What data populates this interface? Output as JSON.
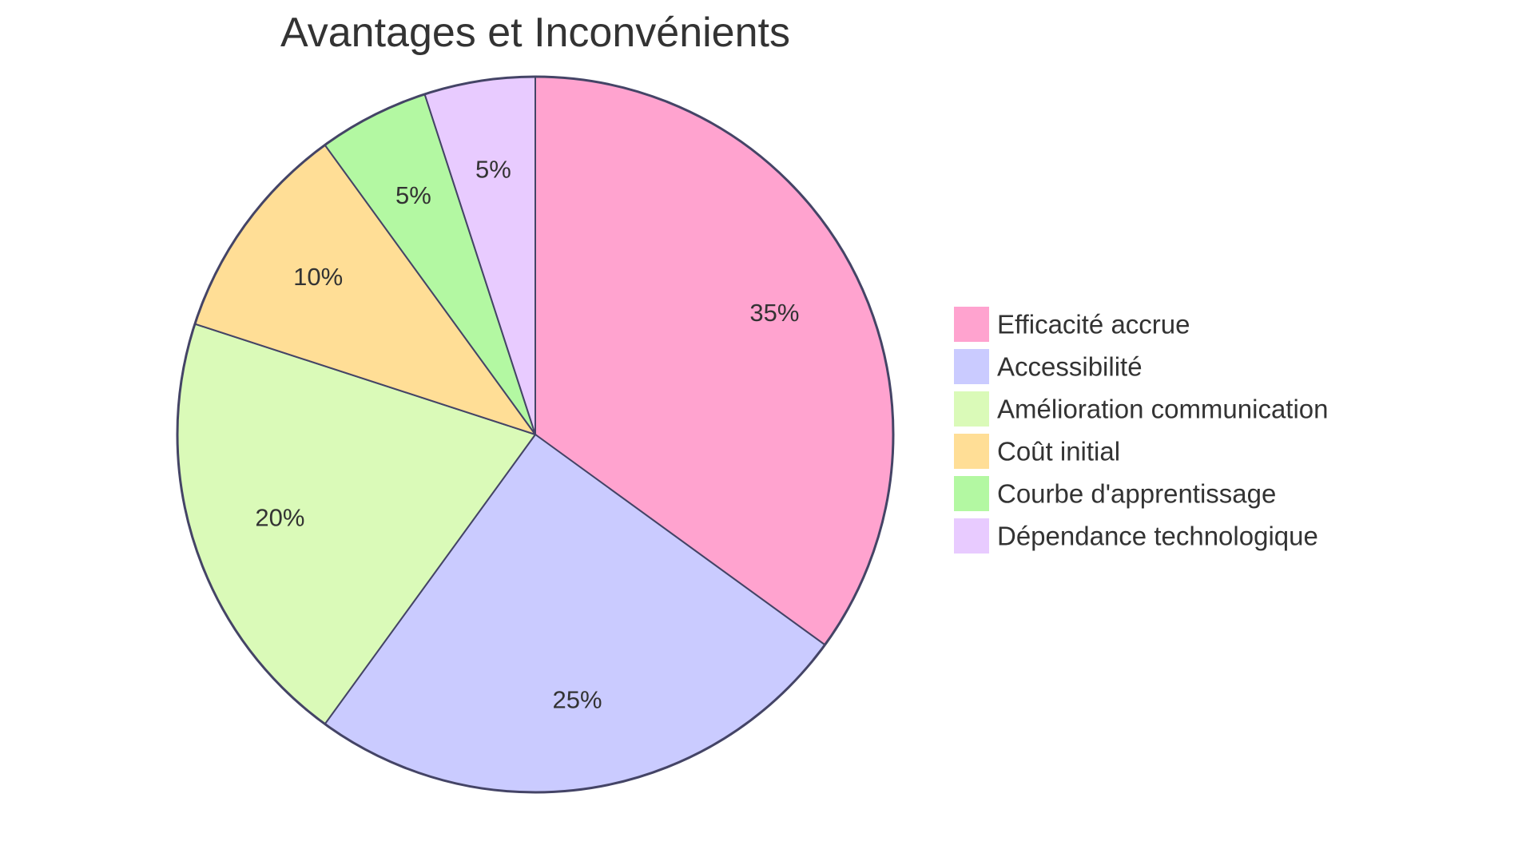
{
  "chart_data": {
    "type": "pie",
    "title": "Avantages et Inconvénients",
    "legend_position": "right",
    "slices": [
      {
        "label": "Efficacité accrue",
        "value": 35,
        "display": "35%",
        "color": "#FFA3CF"
      },
      {
        "label": "Accessibilité",
        "value": 25,
        "display": "25%",
        "color": "#CACBFF"
      },
      {
        "label": "Amélioration communication",
        "value": 20,
        "display": "20%",
        "color": "#DAFAB8"
      },
      {
        "label": "Coût initial",
        "value": 10,
        "display": "10%",
        "color": "#FFDE96"
      },
      {
        "label": "Courbe d'apprentissage",
        "value": 5,
        "display": "5%",
        "color": "#B3F8A2"
      },
      {
        "label": "Dépendance technologique",
        "value": 5,
        "display": "5%",
        "color": "#E8CBFF"
      }
    ],
    "stroke_color": "#444466"
  }
}
